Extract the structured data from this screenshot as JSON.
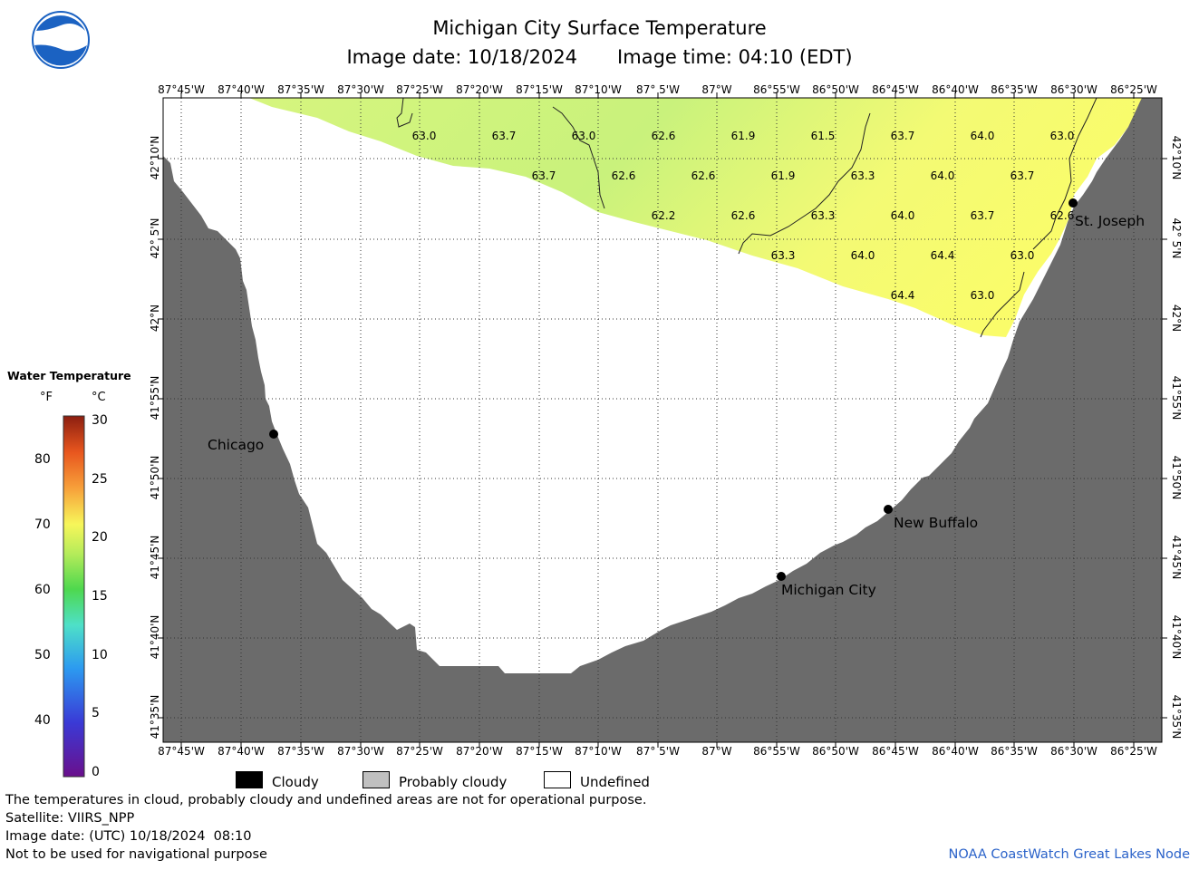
{
  "header": {
    "title": "Michigan City Surface Temperature",
    "image_date": "Image date: 10/18/2024",
    "image_time": "Image time: 04:10 (EDT)"
  },
  "logo": {
    "text": "NOAA",
    "icon": "noaa-logo"
  },
  "longitude_labels": [
    "87°45'W",
    "87°40'W",
    "87°35'W",
    "87°30'W",
    "87°25'W",
    "87°20'W",
    "87°15'W",
    "87°10'W",
    "87° 5'W",
    "87°W",
    "86°55'W",
    "86°50'W",
    "86°45'W",
    "86°40'W",
    "86°35'W",
    "86°30'W",
    "86°25'W"
  ],
  "latitude_labels": [
    "42°10'N",
    "42° 5'N",
    "42°N",
    "41°55'N",
    "41°50'N",
    "41°45'N",
    "41°40'N",
    "41°35'N"
  ],
  "cities": {
    "chicago": "Chicago",
    "st_joseph": "St. Joseph",
    "new_buffalo": "New Buffalo",
    "michigan_city": "Michigan City"
  },
  "sst_labels": [
    "63.0",
    "63.7",
    "63.0",
    "62.6",
    "61.9",
    "61.5",
    "63.7",
    "64.0",
    "63.0",
    "63.7",
    "62.6",
    "62.6",
    "61.9",
    "63.3",
    "64.0",
    "63.7",
    "62.2",
    "62.6",
    "63.3",
    "64.0",
    "63.7",
    "62.6",
    "63.3",
    "64.0",
    "64.4",
    "63.0",
    "64.4",
    "63.0"
  ],
  "colors": {
    "land": "#6b6b6b",
    "water_undefined": "#ffffff",
    "sst_green": "#ccf57a",
    "sst_yellow": "#f7fb6e"
  },
  "legend": {
    "title": "Water Temperature",
    "unit_f": "°F",
    "unit_c": "°C",
    "f_ticks": [
      "80",
      "70",
      "60",
      "50",
      "40"
    ],
    "c_ticks": [
      "30",
      "25",
      "20",
      "15",
      "10",
      "5",
      "0"
    ],
    "range_f": [
      32,
      86
    ],
    "range_c": [
      0,
      30
    ]
  },
  "cloud_legend": {
    "cloudy": "Cloudy",
    "probably_cloudy": "Probably cloudy",
    "undefined": "Undefined",
    "colors": [
      "#000000",
      "#c0c0c0",
      "#ffffff"
    ]
  },
  "footer": {
    "note": "The temperatures in cloud, probably cloudy and undefined areas are not for operational purpose.",
    "satellite": "Satellite: VIIRS_NPP",
    "utc_date": "Image date: (UTC) 10/18/2024  08:10",
    "warning": "Not to be used for navigational purpose",
    "credit": "NOAA CoastWatch Great Lakes Node"
  }
}
